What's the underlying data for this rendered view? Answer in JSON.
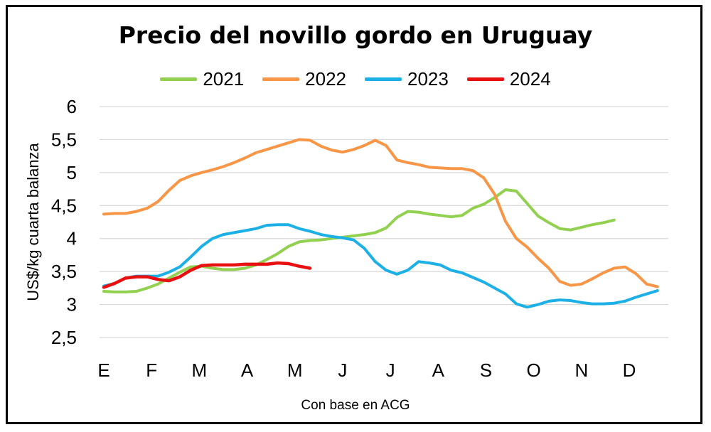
{
  "chart_data": {
    "type": "line",
    "title": "Precio del novillo gordo en Uruguay",
    "ylabel": "US$/kg cuarta balanza",
    "source_note": "Con base en ACG",
    "ylim": [
      2.5,
      6
    ],
    "xlim": [
      0,
      52
    ],
    "yticks": [
      "2,5",
      "3",
      "3,5",
      "4",
      "4,5",
      "5",
      "5,5",
      "6"
    ],
    "months": [
      {
        "label": "E",
        "x": 0
      },
      {
        "label": "F",
        "x": 4.4
      },
      {
        "label": "M",
        "x": 8.8
      },
      {
        "label": "A",
        "x": 13.2
      },
      {
        "label": "M",
        "x": 17.6
      },
      {
        "label": "J",
        "x": 22
      },
      {
        "label": "J",
        "x": 26.4
      },
      {
        "label": "A",
        "x": 30.8
      },
      {
        "label": "S",
        "x": 35.2
      },
      {
        "label": "O",
        "x": 39.6
      },
      {
        "label": "N",
        "x": 44
      },
      {
        "label": "D",
        "x": 48.4
      }
    ],
    "grid": true,
    "legend_position": "top",
    "series": [
      {
        "name": "2021",
        "color": "#92d050",
        "points": [
          [
            0,
            3.2
          ],
          [
            1,
            3.19
          ],
          [
            2,
            3.19
          ],
          [
            3,
            3.2
          ],
          [
            4,
            3.25
          ],
          [
            5,
            3.31
          ],
          [
            6,
            3.4
          ],
          [
            7,
            3.49
          ],
          [
            8,
            3.57
          ],
          [
            9,
            3.58
          ],
          [
            10,
            3.55
          ],
          [
            11,
            3.53
          ],
          [
            12,
            3.53
          ],
          [
            13,
            3.55
          ],
          [
            14,
            3.6
          ],
          [
            15,
            3.68
          ],
          [
            16,
            3.77
          ],
          [
            17,
            3.88
          ],
          [
            18,
            3.95
          ],
          [
            19,
            3.97
          ],
          [
            20,
            3.98
          ],
          [
            21,
            4.0
          ],
          [
            22,
            4.02
          ],
          [
            23,
            4.04
          ],
          [
            24,
            4.06
          ],
          [
            25,
            4.09
          ],
          [
            26,
            4.16
          ],
          [
            27,
            4.32
          ],
          [
            28,
            4.41
          ],
          [
            29,
            4.4
          ],
          [
            30,
            4.37
          ],
          [
            31,
            4.35
          ],
          [
            32,
            4.33
          ],
          [
            33,
            4.35
          ],
          [
            34,
            4.46
          ],
          [
            35,
            4.52
          ],
          [
            36,
            4.62
          ],
          [
            37,
            4.74
          ],
          [
            38,
            4.72
          ],
          [
            39,
            4.53
          ],
          [
            40,
            4.34
          ],
          [
            41,
            4.24
          ],
          [
            42,
            4.15
          ],
          [
            43,
            4.13
          ],
          [
            44,
            4.17
          ],
          [
            45,
            4.21
          ],
          [
            46,
            4.24
          ],
          [
            47,
            4.28
          ]
        ]
      },
      {
        "name": "2022",
        "color": "#f79646",
        "points": [
          [
            0,
            4.37
          ],
          [
            1,
            4.38
          ],
          [
            2,
            4.38
          ],
          [
            3,
            4.41
          ],
          [
            4,
            4.46
          ],
          [
            5,
            4.56
          ],
          [
            6,
            4.73
          ],
          [
            7,
            4.88
          ],
          [
            8,
            4.95
          ],
          [
            9,
            5.0
          ],
          [
            10,
            5.04
          ],
          [
            11,
            5.09
          ],
          [
            12,
            5.15
          ],
          [
            13,
            5.22
          ],
          [
            14,
            5.3
          ],
          [
            15,
            5.35
          ],
          [
            16,
            5.4
          ],
          [
            17,
            5.45
          ],
          [
            18,
            5.5
          ],
          [
            19,
            5.49
          ],
          [
            20,
            5.4
          ],
          [
            21,
            5.34
          ],
          [
            22,
            5.31
          ],
          [
            23,
            5.35
          ],
          [
            24,
            5.41
          ],
          [
            25,
            5.49
          ],
          [
            26,
            5.41
          ],
          [
            27,
            5.19
          ],
          [
            28,
            5.15
          ],
          [
            29,
            5.12
          ],
          [
            30,
            5.08
          ],
          [
            31,
            5.07
          ],
          [
            32,
            5.06
          ],
          [
            33,
            5.06
          ],
          [
            34,
            5.03
          ],
          [
            35,
            4.92
          ],
          [
            36,
            4.67
          ],
          [
            37,
            4.26
          ],
          [
            38,
            4.0
          ],
          [
            39,
            3.87
          ],
          [
            40,
            3.7
          ],
          [
            41,
            3.55
          ],
          [
            42,
            3.35
          ],
          [
            43,
            3.29
          ],
          [
            44,
            3.31
          ],
          [
            45,
            3.39
          ],
          [
            46,
            3.48
          ],
          [
            47,
            3.55
          ],
          [
            48,
            3.57
          ],
          [
            49,
            3.47
          ],
          [
            50,
            3.31
          ],
          [
            51,
            3.27
          ]
        ]
      },
      {
        "name": "2023",
        "color": "#1cb0e6",
        "points": [
          [
            0,
            3.28
          ],
          [
            1,
            3.32
          ],
          [
            2,
            3.4
          ],
          [
            3,
            3.43
          ],
          [
            4,
            3.43
          ],
          [
            5,
            3.43
          ],
          [
            6,
            3.49
          ],
          [
            7,
            3.57
          ],
          [
            8,
            3.72
          ],
          [
            9,
            3.88
          ],
          [
            10,
            4.0
          ],
          [
            11,
            4.06
          ],
          [
            12,
            4.09
          ],
          [
            13,
            4.12
          ],
          [
            14,
            4.15
          ],
          [
            15,
            4.2
          ],
          [
            16,
            4.21
          ],
          [
            17,
            4.21
          ],
          [
            18,
            4.15
          ],
          [
            19,
            4.11
          ],
          [
            20,
            4.06
          ],
          [
            21,
            4.03
          ],
          [
            22,
            4.01
          ],
          [
            23,
            3.98
          ],
          [
            24,
            3.85
          ],
          [
            25,
            3.65
          ],
          [
            26,
            3.52
          ],
          [
            27,
            3.46
          ],
          [
            28,
            3.52
          ],
          [
            29,
            3.65
          ],
          [
            30,
            3.63
          ],
          [
            31,
            3.6
          ],
          [
            32,
            3.52
          ],
          [
            33,
            3.48
          ],
          [
            34,
            3.41
          ],
          [
            35,
            3.34
          ],
          [
            36,
            3.25
          ],
          [
            37,
            3.16
          ],
          [
            38,
            3.01
          ],
          [
            39,
            2.96
          ],
          [
            40,
            3.0
          ],
          [
            41,
            3.05
          ],
          [
            42,
            3.07
          ],
          [
            43,
            3.06
          ],
          [
            44,
            3.03
          ],
          [
            45,
            3.01
          ],
          [
            46,
            3.01
          ],
          [
            47,
            3.02
          ],
          [
            48,
            3.05
          ],
          [
            49,
            3.11
          ],
          [
            50,
            3.16
          ],
          [
            51,
            3.21
          ]
        ]
      },
      {
        "name": "2024",
        "color": "#e81010",
        "points": [
          [
            0,
            3.26
          ],
          [
            1,
            3.32
          ],
          [
            2,
            3.4
          ],
          [
            3,
            3.42
          ],
          [
            4,
            3.42
          ],
          [
            5,
            3.38
          ],
          [
            6,
            3.36
          ],
          [
            7,
            3.42
          ],
          [
            8,
            3.52
          ],
          [
            9,
            3.59
          ],
          [
            10,
            3.6
          ],
          [
            11,
            3.6
          ],
          [
            12,
            3.6
          ],
          [
            13,
            3.61
          ],
          [
            14,
            3.61
          ],
          [
            15,
            3.61
          ],
          [
            16,
            3.63
          ],
          [
            17,
            3.62
          ],
          [
            18,
            3.58
          ],
          [
            19,
            3.55
          ]
        ]
      }
    ]
  }
}
